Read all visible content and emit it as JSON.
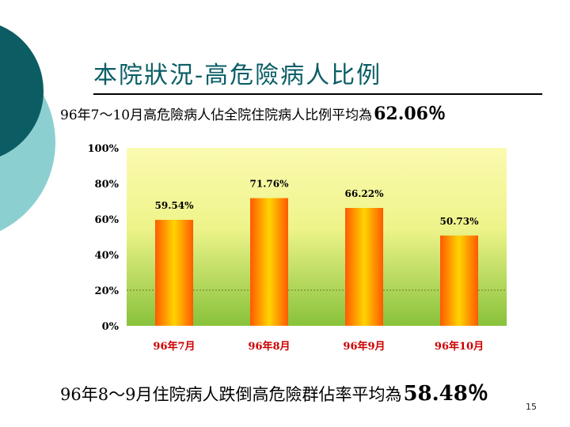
{
  "slide": {
    "title": "本院狀況-高危險病人比例",
    "subtitle_text": "96年7～10月高危險病人佔全院住院病人比例平均為",
    "subtitle_value": "62.06％",
    "footnote_text": "96年8～9月住院病人跌倒高危險群佔率平均為",
    "footnote_value": "58.48％",
    "page_number": "15"
  },
  "colors": {
    "title": "#0a5e66",
    "deco_dark": "#0b5d63",
    "deco_light": "#8ccfd1",
    "plot_top": "#fbfab0",
    "plot_bottom": "#88c23a",
    "bar_center": "#ffd400",
    "bar_edge": "#ff5a00",
    "x_label": "#cc0000"
  },
  "chart_data": {
    "type": "bar",
    "categories": [
      "96年7月",
      "96年8月",
      "96年9月",
      "96年10月"
    ],
    "values": [
      59.54,
      71.76,
      66.22,
      50.73
    ],
    "value_labels": [
      "59.54%",
      "71.76%",
      "66.22%",
      "50.73%"
    ],
    "y_ticks": [
      "0%",
      "20%",
      "40%",
      "60%",
      "80%",
      "100%"
    ],
    "ylim": [
      0,
      100
    ],
    "reference_line": 20,
    "grid": false,
    "legend": "none"
  }
}
